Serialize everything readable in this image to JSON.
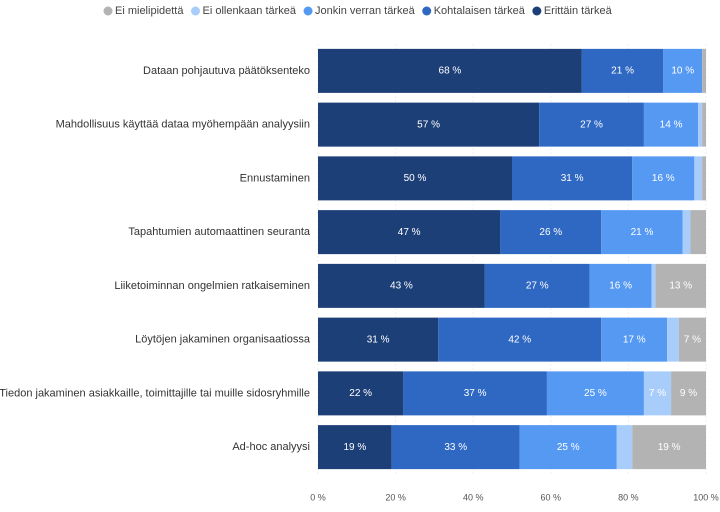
{
  "chart_data": {
    "type": "stacked-bar-horizontal",
    "categories": [
      "Dataan pohjautuva päätöksenteko",
      "Mahdollisuus käyttää dataa myöhempään analyysiin",
      "Ennustaminen",
      "Tapahtumien automaattinen seuranta",
      "Liiketoiminnan ongelmien ratkaiseminen",
      "Löytöjen jakaminen organisaatiossa",
      "Tiedon jakaminen asiakkaille, toimittajille tai muille sidosryhmille",
      "Ad-hoc analyysi"
    ],
    "series": [
      {
        "name": "Ei mielipidettä",
        "color": "#b3b3b3",
        "values": [
          1,
          1,
          1,
          4,
          13,
          7,
          9,
          19
        ],
        "value_labels": [
          null,
          null,
          null,
          null,
          "13 %",
          "7 %",
          "9 %",
          "19 %"
        ]
      },
      {
        "name": "Ei ollenkaan tärkeä",
        "color": "#a9cdfa",
        "values": [
          0,
          1,
          2,
          2,
          1,
          3,
          7,
          4
        ],
        "value_labels": [
          null,
          null,
          null,
          null,
          null,
          null,
          "7 %",
          null
        ]
      },
      {
        "name": "Jonkin verran tärkeä",
        "color": "#5599f3",
        "values": [
          10,
          14,
          16,
          21,
          16,
          17,
          25,
          25
        ],
        "value_labels": [
          "10 %",
          "14 %",
          "16 %",
          "21 %",
          "16 %",
          "17 %",
          "25 %",
          "25 %"
        ]
      },
      {
        "name": "Kohtalaisen tärkeä",
        "color": "#2e68c3",
        "values": [
          21,
          27,
          31,
          26,
          27,
          42,
          37,
          33
        ],
        "value_labels": [
          "21 %",
          "27 %",
          "31 %",
          "26 %",
          "27 %",
          "42 %",
          "37 %",
          "33 %"
        ]
      },
      {
        "name": "Erittäin tärkeä",
        "color": "#1d3f78",
        "values": [
          68,
          57,
          50,
          47,
          43,
          31,
          22,
          19
        ],
        "value_labels": [
          "68 %",
          "57 %",
          "50 %",
          "47 %",
          "43 %",
          "31 %",
          "22 %",
          "19 %"
        ]
      }
    ],
    "xlim": [
      0,
      100
    ],
    "xticks": [
      {
        "value": 0,
        "label": "0 %"
      },
      {
        "value": 20,
        "label": "20 %"
      },
      {
        "value": 40,
        "label": "40 %"
      },
      {
        "value": 60,
        "label": "60 %"
      },
      {
        "value": 80,
        "label": "80 %"
      },
      {
        "value": 100,
        "label": "100 %"
      }
    ],
    "grid": true
  }
}
